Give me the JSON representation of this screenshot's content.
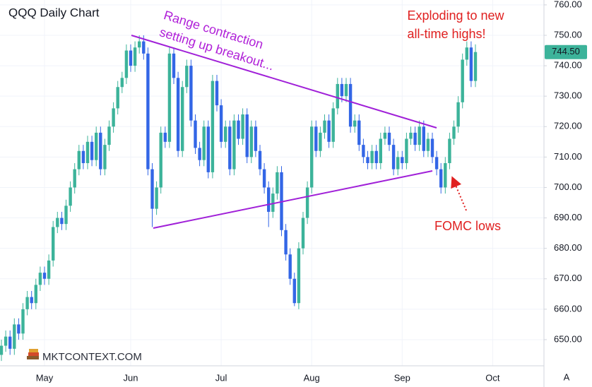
{
  "chart_data": {
    "type": "candlestick",
    "title": "QQQ Daily Chart",
    "categories": [
      null,
      null,
      null,
      null,
      null,
      null,
      null,
      null,
      null,
      null,
      "May",
      null,
      null,
      null,
      null,
      null,
      null,
      null,
      null,
      null,
      null,
      null,
      null,
      null,
      null,
      null,
      null,
      null,
      null,
      null,
      "Jun",
      null,
      null,
      null,
      null,
      null,
      null,
      null,
      null,
      null,
      null,
      null,
      null,
      null,
      null,
      null,
      null,
      null,
      null,
      null,
      null,
      "Jul",
      null,
      null,
      null,
      null,
      null,
      null,
      null,
      null,
      null,
      null,
      null,
      null,
      null,
      null,
      null,
      null,
      null,
      null,
      null,
      null,
      "Aug",
      null,
      null,
      null,
      null,
      null,
      null,
      null,
      null,
      null,
      null,
      null,
      null,
      null,
      null,
      null,
      null,
      null,
      null,
      null,
      null,
      "Sep",
      null,
      null,
      null,
      null,
      null,
      null,
      null,
      null,
      null,
      null,
      null,
      null,
      null,
      null,
      null,
      null,
      null,
      null,
      null,
      null,
      "Oct"
    ],
    "open": [
      645,
      648,
      651,
      647,
      655,
      652,
      660,
      664,
      662,
      668,
      672,
      670,
      676,
      687,
      690,
      688,
      694,
      700,
      706,
      712,
      708,
      715,
      709,
      718,
      706,
      714,
      720,
      726,
      733,
      736,
      745,
      740,
      746,
      748,
      744,
      706,
      693,
      700,
      718,
      715,
      744,
      736,
      712,
      733,
      740,
      722,
      713,
      709,
      720,
      705,
      735,
      727,
      715,
      720,
      706,
      722,
      716,
      724,
      710,
      720,
      712,
      706,
      700,
      692,
      698,
      705,
      686,
      678,
      670,
      662,
      680,
      690,
      700,
      720,
      712,
      718,
      722,
      715,
      726,
      734,
      730,
      734,
      720,
      722,
      714,
      710,
      708,
      712,
      708,
      716,
      718,
      714,
      706,
      710,
      708,
      716,
      718,
      714,
      720,
      712,
      716,
      710,
      706,
      700,
      708,
      716,
      720,
      728,
      742,
      746,
      735,
      null,
      null,
      null,
      null
    ],
    "high": [
      650,
      653,
      653,
      657,
      657,
      662,
      666,
      666,
      670,
      674,
      674,
      678,
      689,
      692,
      692,
      696,
      702,
      708,
      714,
      714,
      717,
      717,
      720,
      720,
      716,
      722,
      728,
      735,
      738,
      747,
      747,
      748,
      750,
      750,
      746,
      708,
      702,
      720,
      720,
      746,
      746,
      738,
      735,
      742,
      742,
      724,
      715,
      722,
      722,
      737,
      737,
      729,
      722,
      722,
      724,
      724,
      726,
      726,
      722,
      722,
      714,
      708,
      702,
      700,
      707,
      707,
      688,
      680,
      672,
      682,
      692,
      702,
      722,
      722,
      720,
      724,
      724,
      728,
      736,
      736,
      736,
      736,
      724,
      724,
      716,
      712,
      714,
      714,
      718,
      720,
      720,
      716,
      712,
      712,
      718,
      720,
      720,
      722,
      722,
      718,
      718,
      712,
      708,
      710,
      718,
      722,
      730,
      744,
      748,
      748,
      747,
      null,
      null,
      null,
      null
    ],
    "low": [
      643,
      646,
      645,
      645,
      650,
      650,
      658,
      660,
      660,
      666,
      668,
      668,
      674,
      685,
      686,
      686,
      692,
      698,
      704,
      706,
      706,
      707,
      707,
      704,
      704,
      712,
      718,
      724,
      731,
      734,
      738,
      738,
      744,
      742,
      704,
      687,
      691,
      698,
      713,
      713,
      734,
      710,
      710,
      731,
      720,
      711,
      707,
      707,
      703,
      703,
      725,
      713,
      713,
      704,
      704,
      714,
      714,
      708,
      708,
      710,
      704,
      698,
      687,
      690,
      696,
      684,
      676,
      668,
      661,
      660,
      678,
      688,
      698,
      710,
      710,
      716,
      713,
      713,
      724,
      728,
      728,
      718,
      718,
      712,
      708,
      706,
      706,
      706,
      706,
      714,
      712,
      704,
      704,
      706,
      706,
      714,
      712,
      712,
      710,
      710,
      708,
      704,
      698,
      698,
      706,
      714,
      718,
      726,
      740,
      733,
      733,
      null,
      null,
      null,
      null
    ],
    "close": [
      648,
      651,
      647,
      655,
      652,
      660,
      664,
      662,
      668,
      672,
      670,
      676,
      687,
      690,
      688,
      694,
      700,
      706,
      712,
      708,
      715,
      709,
      718,
      706,
      714,
      720,
      726,
      733,
      736,
      745,
      740,
      746,
      748,
      744,
      706,
      693,
      700,
      718,
      715,
      744,
      736,
      712,
      733,
      740,
      722,
      713,
      709,
      720,
      705,
      735,
      727,
      715,
      720,
      706,
      722,
      716,
      724,
      710,
      720,
      712,
      706,
      700,
      692,
      698,
      705,
      686,
      678,
      670,
      662,
      680,
      690,
      700,
      720,
      712,
      718,
      722,
      715,
      726,
      734,
      730,
      734,
      720,
      722,
      714,
      710,
      708,
      712,
      708,
      716,
      718,
      714,
      706,
      710,
      708,
      716,
      718,
      714,
      720,
      712,
      716,
      710,
      706,
      700,
      708,
      716,
      720,
      728,
      742,
      746,
      735,
      744.5,
      null,
      null,
      null,
      null
    ],
    "up_color": "#3cb39a",
    "down_color": "#3366e6",
    "ylim": [
      641.4,
      761.6
    ],
    "yticks": [
      {
        "value": 650,
        "label": "650.00"
      },
      {
        "value": 660,
        "label": "660.00"
      },
      {
        "value": 670,
        "label": "670.00"
      },
      {
        "value": 680,
        "label": "680.00"
      },
      {
        "value": 690,
        "label": "690.00"
      },
      {
        "value": 700,
        "label": "700.00"
      },
      {
        "value": 710,
        "label": "710.00"
      },
      {
        "value": 720,
        "label": "720.00"
      },
      {
        "value": 730,
        "label": "730.00"
      },
      {
        "value": 740,
        "label": "740.00"
      },
      {
        "value": 750,
        "label": "750.00"
      },
      {
        "value": 760,
        "label": "760.00"
      }
    ],
    "grid": true,
    "last_price": {
      "value": 744.5,
      "label": "744.50"
    },
    "annotations": [
      "Range contraction",
      "setting up breakout...",
      "Exploding to new",
      "all-time highs!",
      "FOMC lows"
    ],
    "watermark": "MKTCONTEXT.COM",
    "corner_button": "A"
  }
}
